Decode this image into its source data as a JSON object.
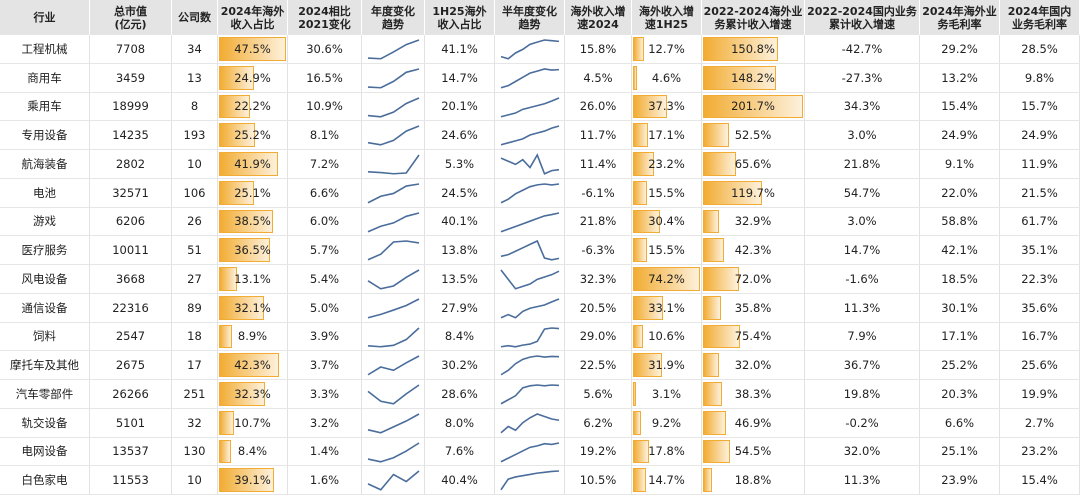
{
  "table": {
    "columns": [
      "行业",
      "总市值\n(亿元)",
      "公司数",
      "2024年海外\n收入占比",
      "2024相比\n2021变化",
      "年度变化\n趋势",
      "1H25海外\n收入占比",
      "半年度变化\n趋势",
      "海外收入增\n速2024",
      "海外收入增\n速1H25",
      "2022-2024海外业\n务累计收入增速",
      "2022-2024国内业务\n累计收入增速",
      "2024年海外业\n务毛利率",
      "2024年国内\n业务毛利率"
    ],
    "bar_columns": [
      3,
      9,
      10
    ],
    "bar_color": "#f2ac33",
    "trend_columns": [
      5,
      7
    ],
    "line_color": "#4a6d9c",
    "rows": [
      [
        "工程机械",
        "7708",
        "34",
        "47.5%",
        "30.6%",
        [
          18,
          16.9,
          28,
          40,
          47.5
        ],
        "41.1%",
        [
          20,
          17,
          25,
          30,
          37,
          40,
          43,
          42,
          41.1
        ],
        "15.8%",
        "12.7%",
        "150.8%",
        "-42.7%",
        "29.2%",
        "28.5%"
      ],
      [
        "商用车",
        "3459",
        "13",
        "24.9%",
        "16.5%",
        [
          9,
          8.4,
          14,
          22,
          24.9
        ],
        "14.7%",
        [
          6,
          7,
          9,
          11,
          13,
          14,
          15,
          14.5,
          14.7
        ],
        "4.5%",
        "4.6%",
        "148.2%",
        "-27.3%",
        "13.2%",
        "9.8%"
      ],
      [
        "乘用车",
        "18999",
        "8",
        "22.2%",
        "10.9%",
        [
          12,
          11.3,
          14,
          19,
          22.2
        ],
        "20.1%",
        [
          10,
          11,
          12,
          14,
          15,
          16,
          17,
          18.5,
          20.1
        ],
        "26.0%",
        "37.3%",
        "201.7%",
        "34.3%",
        "15.4%",
        "15.7%"
      ],
      [
        "专用设备",
        "14235",
        "193",
        "25.2%",
        "8.1%",
        [
          18,
          17.1,
          19,
          23,
          25.2
        ],
        "24.6%",
        [
          15,
          16,
          17,
          18,
          20,
          21,
          22,
          23.5,
          24.6
        ],
        "11.7%",
        "17.1%",
        "52.5%",
        "3.0%",
        "24.9%",
        "24.9%"
      ],
      [
        "航海装备",
        "2802",
        "10",
        "41.9%",
        "7.2%",
        [
          35,
          34.7,
          34.2,
          34.5,
          41.9
        ],
        "5.3%",
        [
          9,
          8,
          7,
          8.5,
          6,
          10,
          4,
          5,
          5.3
        ],
        "11.4%",
        "23.2%",
        "65.6%",
        "21.8%",
        "9.1%",
        "11.9%"
      ],
      [
        "电池",
        "32571",
        "106",
        "25.1%",
        "6.6%",
        [
          15,
          18.5,
          20,
          24,
          25.1
        ],
        "24.5%",
        [
          14,
          16,
          19,
          21,
          23,
          24,
          24.5,
          24,
          24.5
        ],
        "-6.1%",
        "15.5%",
        "119.7%",
        "54.7%",
        "22.0%",
        "21.5%"
      ],
      [
        "游戏",
        "6206",
        "26",
        "38.5%",
        "6.0%",
        [
          30,
          32.5,
          34,
          37,
          38.5
        ],
        "40.1%",
        [
          33,
          34,
          35,
          36,
          37,
          38,
          39,
          39.5,
          40.1
        ],
        "21.8%",
        "30.4%",
        "32.9%",
        "3.0%",
        "58.8%",
        "61.7%"
      ],
      [
        "医疗服务",
        "10011",
        "51",
        "36.5%",
        "5.7%",
        [
          28,
          30.8,
          37,
          37.5,
          36.5
        ],
        "13.8%",
        [
          15,
          16,
          18,
          20,
          22,
          24,
          14,
          13,
          13.8
        ],
        "-6.3%",
        "15.5%",
        "42.3%",
        "14.7%",
        "42.1%",
        "35.1%"
      ],
      [
        "风电设备",
        "3668",
        "27",
        "13.1%",
        "5.4%",
        [
          10,
          7.7,
          8.5,
          11,
          13.1
        ],
        "13.5%",
        [
          14,
          10,
          6,
          7,
          8,
          10,
          11,
          12,
          13.5
        ],
        "32.3%",
        "74.2%",
        "72.0%",
        "-1.6%",
        "18.5%",
        "22.3%"
      ],
      [
        "通信设备",
        "22316",
        "89",
        "32.1%",
        "5.0%",
        [
          26,
          27.1,
          28.5,
          30,
          32.1
        ],
        "27.9%",
        [
          22,
          23,
          22,
          24,
          25,
          25.5,
          26,
          27,
          27.9
        ],
        "20.5%",
        "33.1%",
        "35.8%",
        "11.3%",
        "30.1%",
        "35.6%"
      ],
      [
        "饲料",
        "2547",
        "18",
        "8.9%",
        "3.9%",
        [
          5.2,
          5.0,
          5.3,
          6.5,
          8.9
        ],
        "8.4%",
        [
          5,
          5.2,
          5,
          5.3,
          5.5,
          6,
          8.3,
          8.5,
          8.4
        ],
        "29.0%",
        "10.6%",
        "75.4%",
        "7.9%",
        "17.1%",
        "16.7%"
      ],
      [
        "摩托车及其他",
        "2675",
        "17",
        "42.3%",
        "3.7%",
        [
          36,
          38.6,
          37.5,
          40,
          42.3
        ],
        "30.2%",
        [
          22,
          24,
          27,
          29,
          30,
          30.5,
          30,
          30.3,
          30.2
        ],
        "22.5%",
        "31.9%",
        "32.0%",
        "36.7%",
        "25.2%",
        "25.6%"
      ],
      [
        "汽车零部件",
        "26266",
        "251",
        "32.3%",
        "3.3%",
        [
          31,
          29.0,
          28.5,
          30.5,
          32.3
        ],
        "28.6%",
        [
          24,
          25,
          26,
          28,
          28.5,
          28.7,
          28.5,
          28.7,
          28.6
        ],
        "5.6%",
        "3.1%",
        "38.3%",
        "19.8%",
        "20.3%",
        "19.9%"
      ],
      [
        "轨交设备",
        "5101",
        "32",
        "10.7%",
        "3.2%",
        [
          8,
          7.5,
          8.5,
          9.5,
          10.7
        ],
        "8.0%",
        [
          7,
          7.5,
          7.2,
          7.8,
          8.2,
          8.5,
          8.3,
          8.1,
          8.0
        ],
        "6.2%",
        "9.2%",
        "46.9%",
        "-0.2%",
        "6.6%",
        "2.7%"
      ],
      [
        "电网设备",
        "13537",
        "130",
        "8.4%",
        "1.4%",
        [
          7.2,
          7.0,
          7.3,
          7.8,
          8.4
        ],
        "7.6%",
        [
          5,
          5.5,
          6,
          6.5,
          7,
          7.2,
          7.5,
          7.4,
          7.6
        ],
        "19.2%",
        "17.8%",
        "54.5%",
        "32.0%",
        "25.1%",
        "23.2%"
      ],
      [
        "白色家电",
        "11553",
        "10",
        "39.1%",
        "1.6%",
        [
          38,
          37.5,
          38.8,
          38.2,
          39.1
        ],
        "40.4%",
        [
          36,
          38.5,
          39,
          39.3,
          39.6,
          39.9,
          40.1,
          40.3,
          40.4
        ],
        "10.5%",
        "14.7%",
        "18.8%",
        "11.3%",
        "23.9%",
        "15.4%"
      ]
    ]
  }
}
